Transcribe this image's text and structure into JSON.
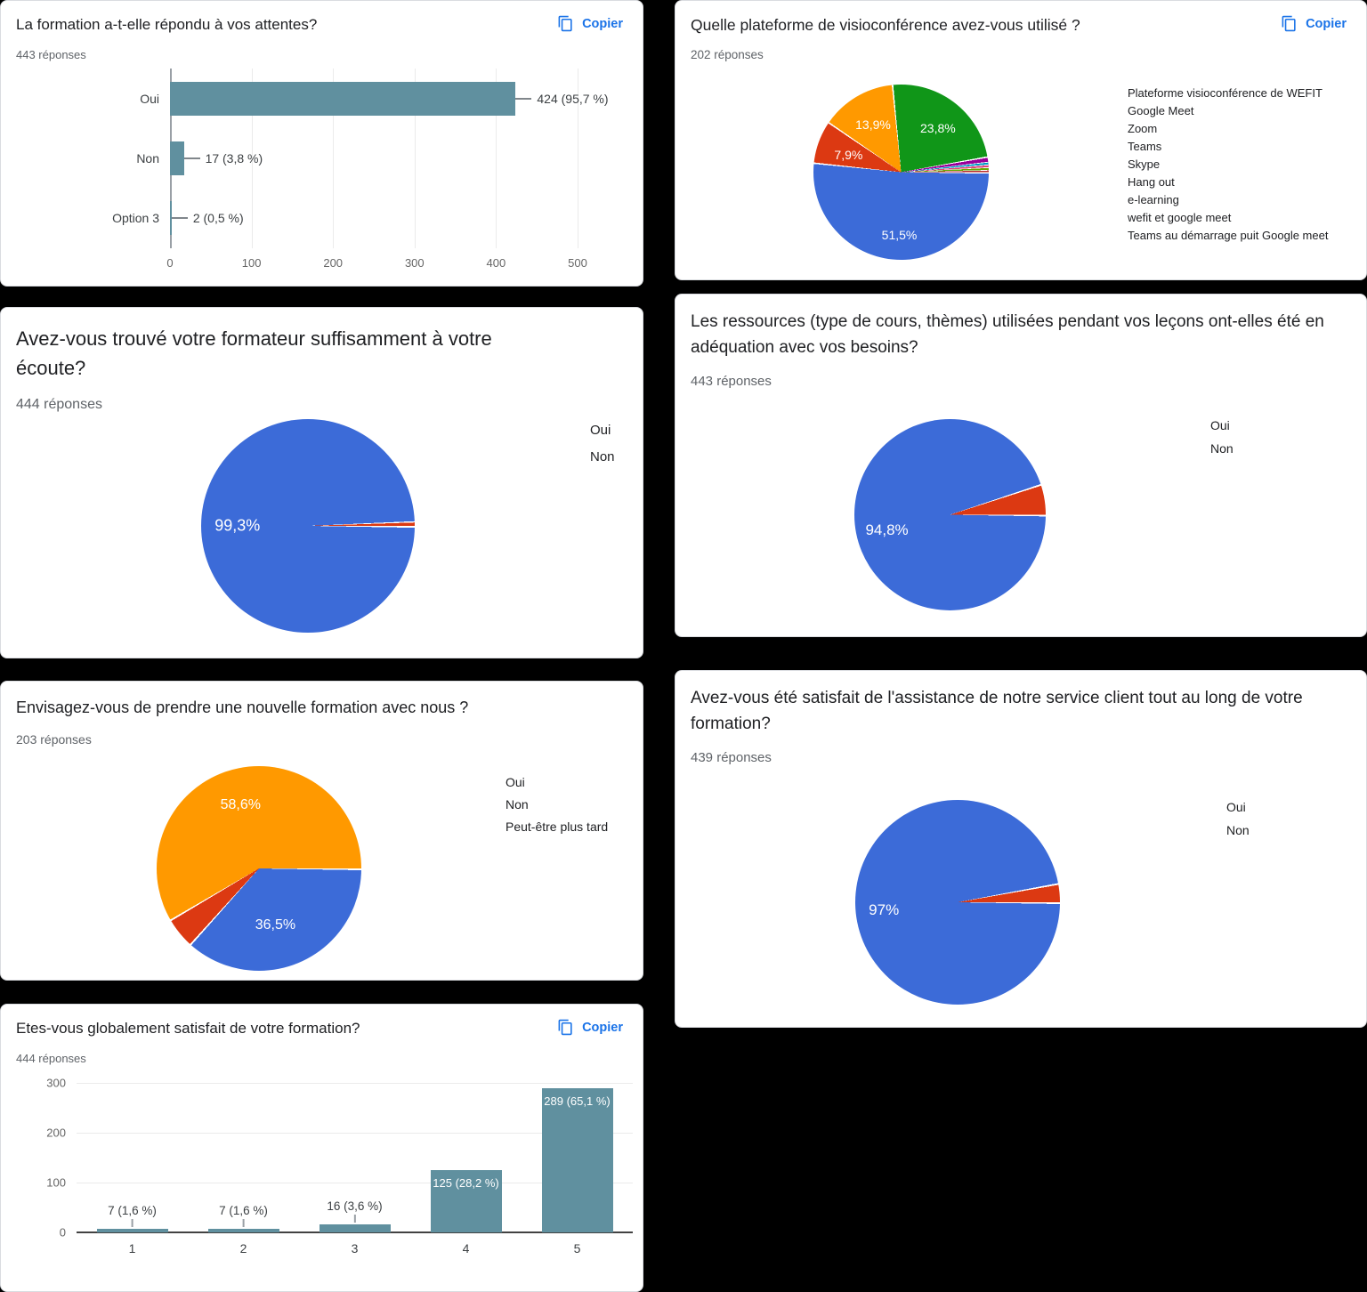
{
  "ui": {
    "copy_label": "Copier",
    "accent_blue": "#1a73e8",
    "card_bg": "#ffffff",
    "page_bg": "#000000"
  },
  "chart_data": [
    {
      "type": "bar",
      "orientation": "horizontal",
      "title": "La formation a-t-elle répondu à vos attentes?",
      "subtitle": "443 réponses",
      "categories": [
        "Oui",
        "Non",
        "Option 3"
      ],
      "values": [
        424,
        17,
        2
      ],
      "value_labels": [
        "424 (95,7 %)",
        "17 (3,8 %)",
        "2 (0,5 %)"
      ],
      "xlim": [
        0,
        500
      ],
      "xticks": [
        "0",
        "100",
        "200",
        "300",
        "400",
        "500"
      ],
      "bar_color": "#60909f",
      "grid": true,
      "has_copy_button": true
    },
    {
      "type": "pie",
      "title": "Quelle plateforme de visioconférence avez-vous utilisé ?",
      "subtitle": "202 réponses",
      "legend_position": "right",
      "has_copy_button": true,
      "slices": [
        {
          "label": "Plateforme visioconférence de WEFIT",
          "pct": 51.5,
          "display": "51,5%",
          "color": "#3c6bd8"
        },
        {
          "label": "Google Meet",
          "pct": 7.9,
          "display": "7,9%",
          "color": "#dc3912"
        },
        {
          "label": "Zoom",
          "pct": 13.9,
          "display": "13,9%",
          "color": "#ff9900"
        },
        {
          "label": "Teams",
          "pct": 23.8,
          "display": "23,8%",
          "color": "#109618"
        },
        {
          "label": "Skype",
          "pct": 1.0,
          "display": "",
          "color": "#990099"
        },
        {
          "label": "Hang out",
          "pct": 0.5,
          "display": "",
          "color": "#0099c6"
        },
        {
          "label": "e-learning",
          "pct": 0.5,
          "display": "",
          "color": "#dd4477"
        },
        {
          "label": "wefit et google meet",
          "pct": 0.5,
          "display": "",
          "color": "#66aa00"
        },
        {
          "label": "Teams au démarrage puit Google meet",
          "pct": 0.4,
          "display": "",
          "color": "#b82e2e"
        }
      ]
    },
    {
      "type": "pie",
      "title": "Avez-vous trouvé votre formateur suffisamment à votre écoute?",
      "subtitle": "444 réponses",
      "legend_position": "right",
      "has_copy_button": false,
      "slices": [
        {
          "label": "Oui",
          "pct": 99.3,
          "display": "99,3%",
          "color": "#3c6bd8"
        },
        {
          "label": "Non",
          "pct": 0.7,
          "display": "",
          "color": "#dc3912"
        }
      ]
    },
    {
      "type": "pie",
      "title": "Les ressources (type de cours, thèmes) utilisées pendant vos leçons ont-elles été en adéquation avec vos besoins?",
      "subtitle": "443 réponses",
      "legend_position": "right",
      "has_copy_button": false,
      "slices": [
        {
          "label": "Oui",
          "pct": 94.8,
          "display": "94,8%",
          "color": "#3c6bd8"
        },
        {
          "label": "Non",
          "pct": 5.2,
          "display": "",
          "color": "#dc3912"
        }
      ]
    },
    {
      "type": "pie",
      "title": "Envisagez-vous de prendre une nouvelle formation avec nous ?",
      "subtitle": "203 réponses",
      "legend_position": "right",
      "has_copy_button": false,
      "slices": [
        {
          "label": "Oui",
          "pct": 36.5,
          "display": "36,5%",
          "color": "#3c6bd8"
        },
        {
          "label": "Non",
          "pct": 4.9,
          "display": "",
          "color": "#dc3912"
        },
        {
          "label": "Peut-être plus tard",
          "pct": 58.6,
          "display": "58,6%",
          "color": "#ff9900"
        }
      ]
    },
    {
      "type": "pie",
      "title": "Avez-vous été satisfait de l'assistance de notre service client tout au long de votre formation?",
      "subtitle": "439 réponses",
      "legend_position": "right",
      "has_copy_button": false,
      "slices": [
        {
          "label": "Oui",
          "pct": 97.0,
          "display": "97%",
          "color": "#3c6bd8"
        },
        {
          "label": "Non",
          "pct": 3.0,
          "display": "",
          "color": "#dc3912"
        }
      ]
    },
    {
      "type": "bar",
      "orientation": "vertical",
      "title": "Etes-vous globalement satisfait de votre formation?",
      "subtitle": "444 réponses",
      "categories": [
        "1",
        "2",
        "3",
        "4",
        "5"
      ],
      "values": [
        7,
        7,
        16,
        125,
        289
      ],
      "value_labels": [
        "7 (1,6 %)",
        "7 (1,6 %)",
        "16 (3,6 %)",
        "125 (28,2 %)",
        "289 (65,1 %)"
      ],
      "label_placement": [
        "out",
        "out",
        "out",
        "in",
        "in"
      ],
      "ylim": [
        0,
        300
      ],
      "yticks": [
        "300",
        "200",
        "100",
        "0"
      ],
      "bar_color": "#60909f",
      "grid": true,
      "has_copy_button": true
    }
  ]
}
